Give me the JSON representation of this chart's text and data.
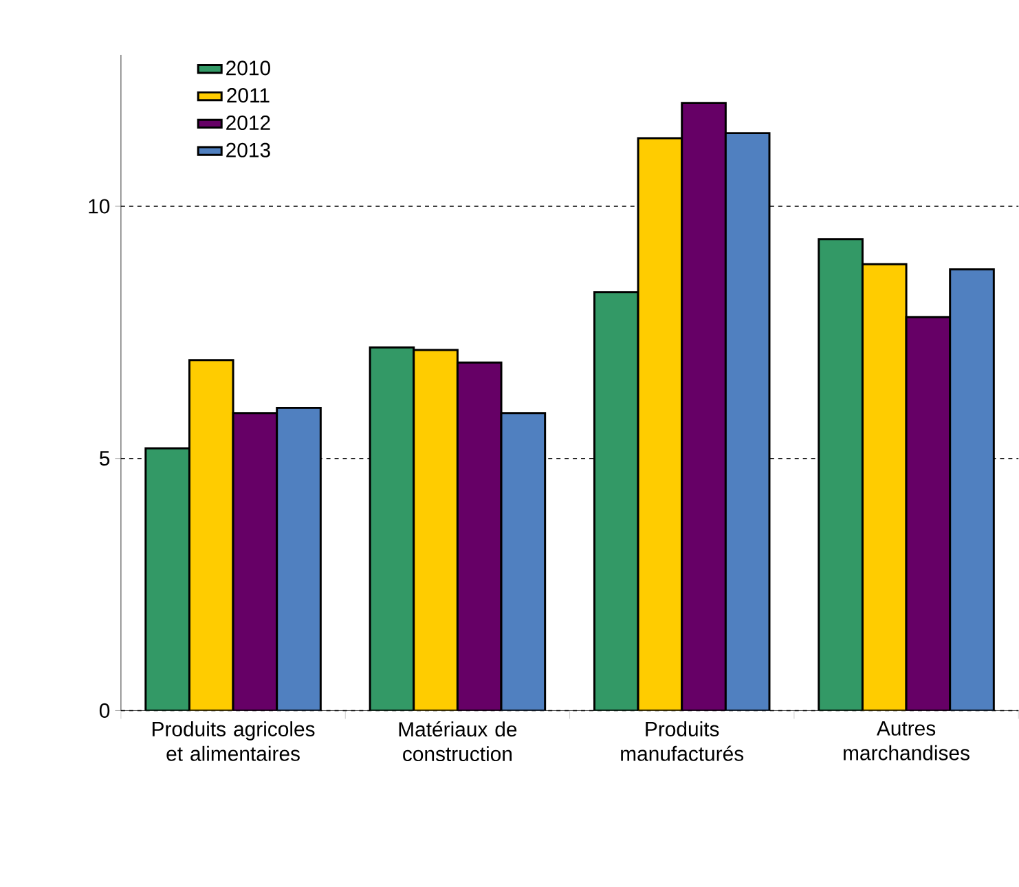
{
  "chart_data": {
    "type": "bar",
    "categories": [
      "Produits agricoles et alimentaires",
      "Matériaux de construction",
      "Produits manufacturés",
      "Autres marchandises"
    ],
    "series": [
      {
        "name": "2010",
        "color": "#339966",
        "values": [
          5.2,
          7.2,
          8.3,
          9.35
        ]
      },
      {
        "name": "2011",
        "color": "#ffcc00",
        "values": [
          6.95,
          7.15,
          11.35,
          8.85
        ]
      },
      {
        "name": "2012",
        "color": "#660066",
        "values": [
          5.9,
          6.9,
          12.05,
          7.8
        ]
      },
      {
        "name": "2013",
        "color": "#5080c0",
        "values": [
          6.0,
          5.9,
          11.45,
          8.75
        ]
      }
    ],
    "ylim": [
      0,
      13
    ],
    "yticks": [
      0,
      5,
      10
    ],
    "grid": "y",
    "legend": "top left"
  }
}
